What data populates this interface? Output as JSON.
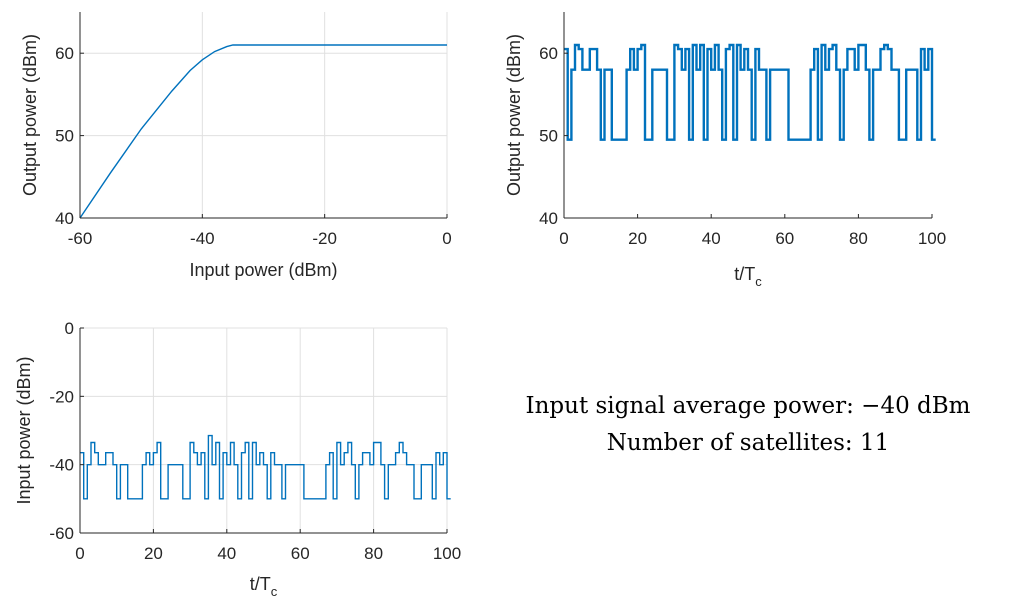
{
  "colors": {
    "line": "#0072bd",
    "grid": "#e0e0e0",
    "axis": "#262626"
  },
  "chart_data": [
    {
      "type": "line",
      "xlabel": "Input power (dBm)",
      "ylabel": "Output power (dBm)",
      "xlim": [
        -60,
        0
      ],
      "ylim": [
        40,
        65
      ],
      "xticks": [
        "-60",
        "-40",
        "-20",
        "0"
      ],
      "yticks": [
        "40",
        "50",
        "60"
      ],
      "grid": true,
      "series": [
        {
          "x": [
            -60,
            -55,
            -50,
            -45,
            -42,
            -40,
            -38,
            -36,
            -35,
            -30,
            -20,
            -10,
            0
          ],
          "y": [
            40,
            45.5,
            50.8,
            55.4,
            57.9,
            59.2,
            60.2,
            60.8,
            61,
            61,
            61,
            61,
            61
          ]
        }
      ]
    },
    {
      "type": "line",
      "xlabel": "t/T",
      "xlabel_sub": "c",
      "ylabel": "Output power (dBm)",
      "xlim": [
        0,
        100
      ],
      "ylim": [
        40,
        65
      ],
      "xticks": [
        "0",
        "20",
        "40",
        "60",
        "80",
        "100"
      ],
      "yticks": [
        "40",
        "50",
        "60"
      ],
      "grid": false,
      "series": [
        {
          "step": true,
          "y": [
            60.5,
            49.5,
            58,
            61,
            60.5,
            58,
            58,
            60.5,
            60.5,
            58,
            49.5,
            58,
            58,
            49.5,
            49.5,
            49.5,
            49.5,
            58,
            60.5,
            58,
            60.5,
            61,
            49.5,
            49.5,
            58,
            58,
            58,
            58,
            49.5,
            49.5,
            61,
            60.5,
            58,
            60.5,
            49.5,
            61,
            58,
            61,
            49.5,
            60.5,
            58,
            61,
            58,
            49.5,
            60.5,
            61,
            49.5,
            61,
            58,
            60.5,
            58,
            49.5,
            60.5,
            58,
            58,
            49.5,
            58,
            58,
            58,
            58,
            58,
            49.5,
            49.5,
            49.5,
            49.5,
            49.5,
            49.5,
            58,
            60.5,
            49.5,
            61,
            58,
            60.5,
            61,
            58,
            49.5,
            58,
            60.5,
            60.5,
            58,
            61,
            61,
            58,
            49.5,
            58,
            58,
            60.5,
            61,
            60.5,
            58,
            58,
            49.5,
            49.5,
            58,
            58,
            58,
            49.5,
            60.5,
            58,
            60.5,
            49.5
          ]
        }
      ]
    },
    {
      "type": "line",
      "xlabel": "t/T",
      "xlabel_sub": "c",
      "ylabel": "Input power (dBm)",
      "xlim": [
        0,
        100
      ],
      "ylim": [
        -60,
        0
      ],
      "xticks": [
        "0",
        "20",
        "40",
        "60",
        "80",
        "100"
      ],
      "yticks": [
        "-60",
        "-40",
        "-20",
        "0"
      ],
      "grid": true,
      "series": [
        {
          "step": true,
          "y": [
            -36.5,
            -50,
            -40,
            -33.5,
            -36.5,
            -40,
            -40,
            -36.5,
            -36.5,
            -40,
            -50,
            -40,
            -40,
            -50,
            -50,
            -50,
            -50,
            -40,
            -36.5,
            -40,
            -36.5,
            -33.5,
            -50,
            -50,
            -40,
            -40,
            -40,
            -40,
            -50,
            -50,
            -33.5,
            -36.5,
            -40,
            -36.5,
            -50,
            -31.5,
            -40,
            -33.5,
            -50,
            -36.5,
            -40,
            -33.5,
            -40,
            -50,
            -36.5,
            -33.5,
            -50,
            -33.5,
            -40,
            -36.5,
            -40,
            -50,
            -36.5,
            -40,
            -40,
            -50,
            -40,
            -40,
            -40,
            -40,
            -40,
            -50,
            -50,
            -50,
            -50,
            -50,
            -50,
            -40,
            -36.5,
            -50,
            -33.5,
            -40,
            -36.5,
            -33.5,
            -40,
            -50,
            -40,
            -36.5,
            -36.5,
            -40,
            -33.5,
            -33.5,
            -40,
            -50,
            -40,
            -40,
            -36.5,
            -33.5,
            -36.5,
            -40,
            -40,
            -50,
            -50,
            -40,
            -40,
            -40,
            -50,
            -36.5,
            -40,
            -36.5,
            -50
          ]
        }
      ]
    }
  ],
  "annotation": {
    "line1": "Input signal average power: −40 dBm",
    "line2": "Number of satellites: 11"
  }
}
